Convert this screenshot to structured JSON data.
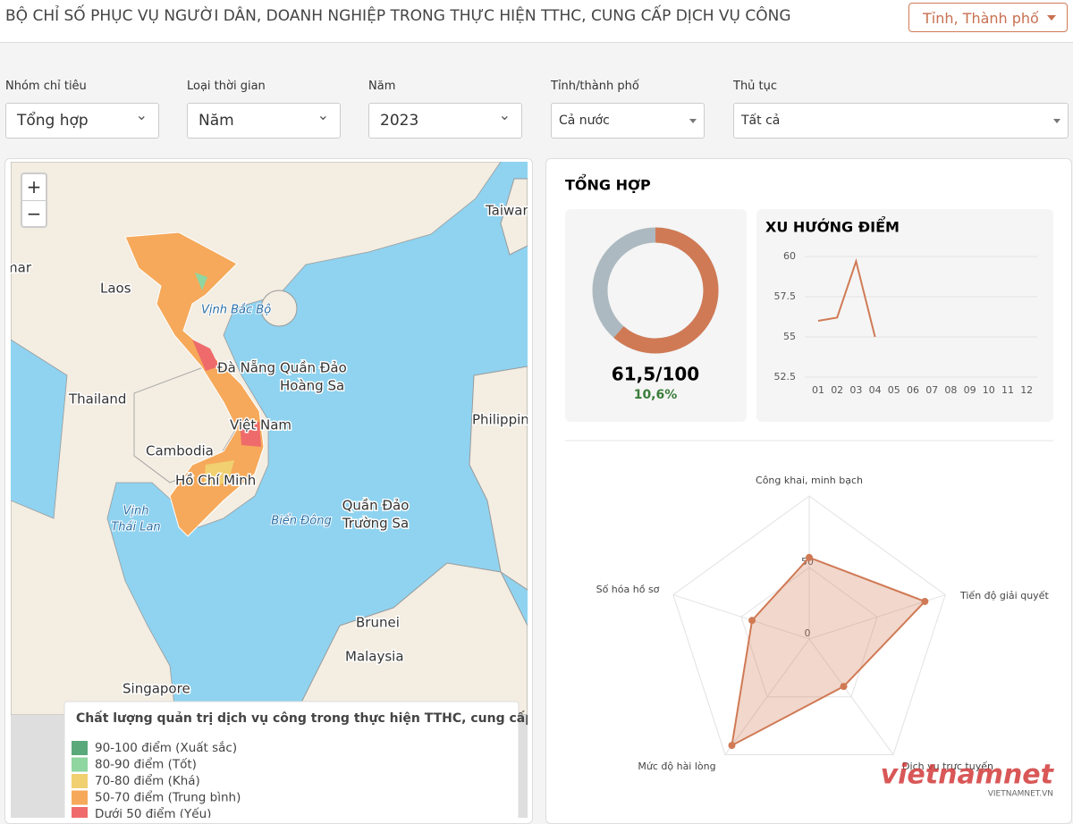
{
  "header": {
    "title": "BỘ CHỈ SỐ PHỤC VỤ NGƯỜI DÂN, DOANH NGHIỆP TRONG THỰC HIỆN TTHC, CUNG CẤP DỊCH VỤ CÔNG",
    "button": "Tỉnh, Thành phố"
  },
  "filters": [
    {
      "label": "Nhóm chỉ tiêu",
      "value": "Tổng hợp"
    },
    {
      "label": "Loại thời gian",
      "value": "Năm"
    },
    {
      "label": "Năm",
      "value": "2023"
    },
    {
      "label": "Tỉnh/thành phố",
      "value": "Cả nước"
    },
    {
      "label": "Thủ tục",
      "value": "Tất cả"
    }
  ],
  "map": {
    "zoom_in": "+",
    "zoom_out": "−",
    "places": [
      "Taiwan",
      "Myanmar",
      "Laos",
      "Vịnh Bắc Bộ",
      "Đà Nẵng",
      "Quần Đảo",
      "Hoàng Sa",
      "Thailand",
      "Việt Nam",
      "Cambodia",
      "Hồ Chí Minh",
      "Philippines",
      "Vịnh",
      "Thái Lan",
      "Biển Đông",
      "Quần Đảo",
      "Trường Sa",
      "Brunei",
      "Malaysia",
      "Singapore"
    ],
    "legend": {
      "title": "Chất lượng quản trị dịch vụ công trong thực hiện TTHC, cung cấp DVC",
      "items": [
        {
          "label": "90-100 điểm (Xuất sắc)",
          "color": "#5aa97a"
        },
        {
          "label": "80-90 điểm (Tốt)",
          "color": "#8fd6a0"
        },
        {
          "label": "70-80 điểm (Khá)",
          "color": "#f0d070"
        },
        {
          "label": "50-70 điểm (Trung bình)",
          "color": "#f6a95a"
        },
        {
          "label": "Dưới 50 điểm (Yếu)",
          "color": "#ef6b6b"
        }
      ]
    }
  },
  "summary": {
    "title": "TỔNG HỢP",
    "donut": {
      "type": "pie",
      "values": [
        61.5
      ],
      "max": 100,
      "value_labels": [
        "61,5/100"
      ],
      "color": "#d07a55",
      "track_color": "#adb9c0",
      "change": {
        "value": 10.6,
        "label": "10,6%"
      }
    },
    "trend": {
      "type": "line",
      "title": "XU HƯỚNG ĐIỂM",
      "categories": [
        "01",
        "02",
        "03",
        "04",
        "05",
        "06",
        "07",
        "08",
        "09",
        "10",
        "11",
        "12"
      ],
      "values": [
        56,
        56.2,
        59.7,
        55,
        null,
        null,
        null,
        null,
        null,
        null,
        null,
        null
      ],
      "color": "#d07a55",
      "ylim": [
        52.5,
        60
      ],
      "yticks": [
        60,
        57.5,
        55,
        52.5
      ],
      "grid": true
    },
    "radar": {
      "type": "radar",
      "axes": [
        "Công khai, minh bạch",
        "Tiến độ giải quyết",
        "Dịch vụ trực tuyến",
        "Mức độ hài lòng",
        "Số hóa hồ sơ"
      ],
      "values": [
        57,
        85,
        41,
        92,
        42
      ],
      "color": "#d07a55",
      "rlim": [
        0,
        100
      ],
      "rticks": [
        0,
        50
      ]
    }
  },
  "watermark": {
    "brand": "vietnamnet",
    "site": "VIETNAMNET.VN"
  }
}
